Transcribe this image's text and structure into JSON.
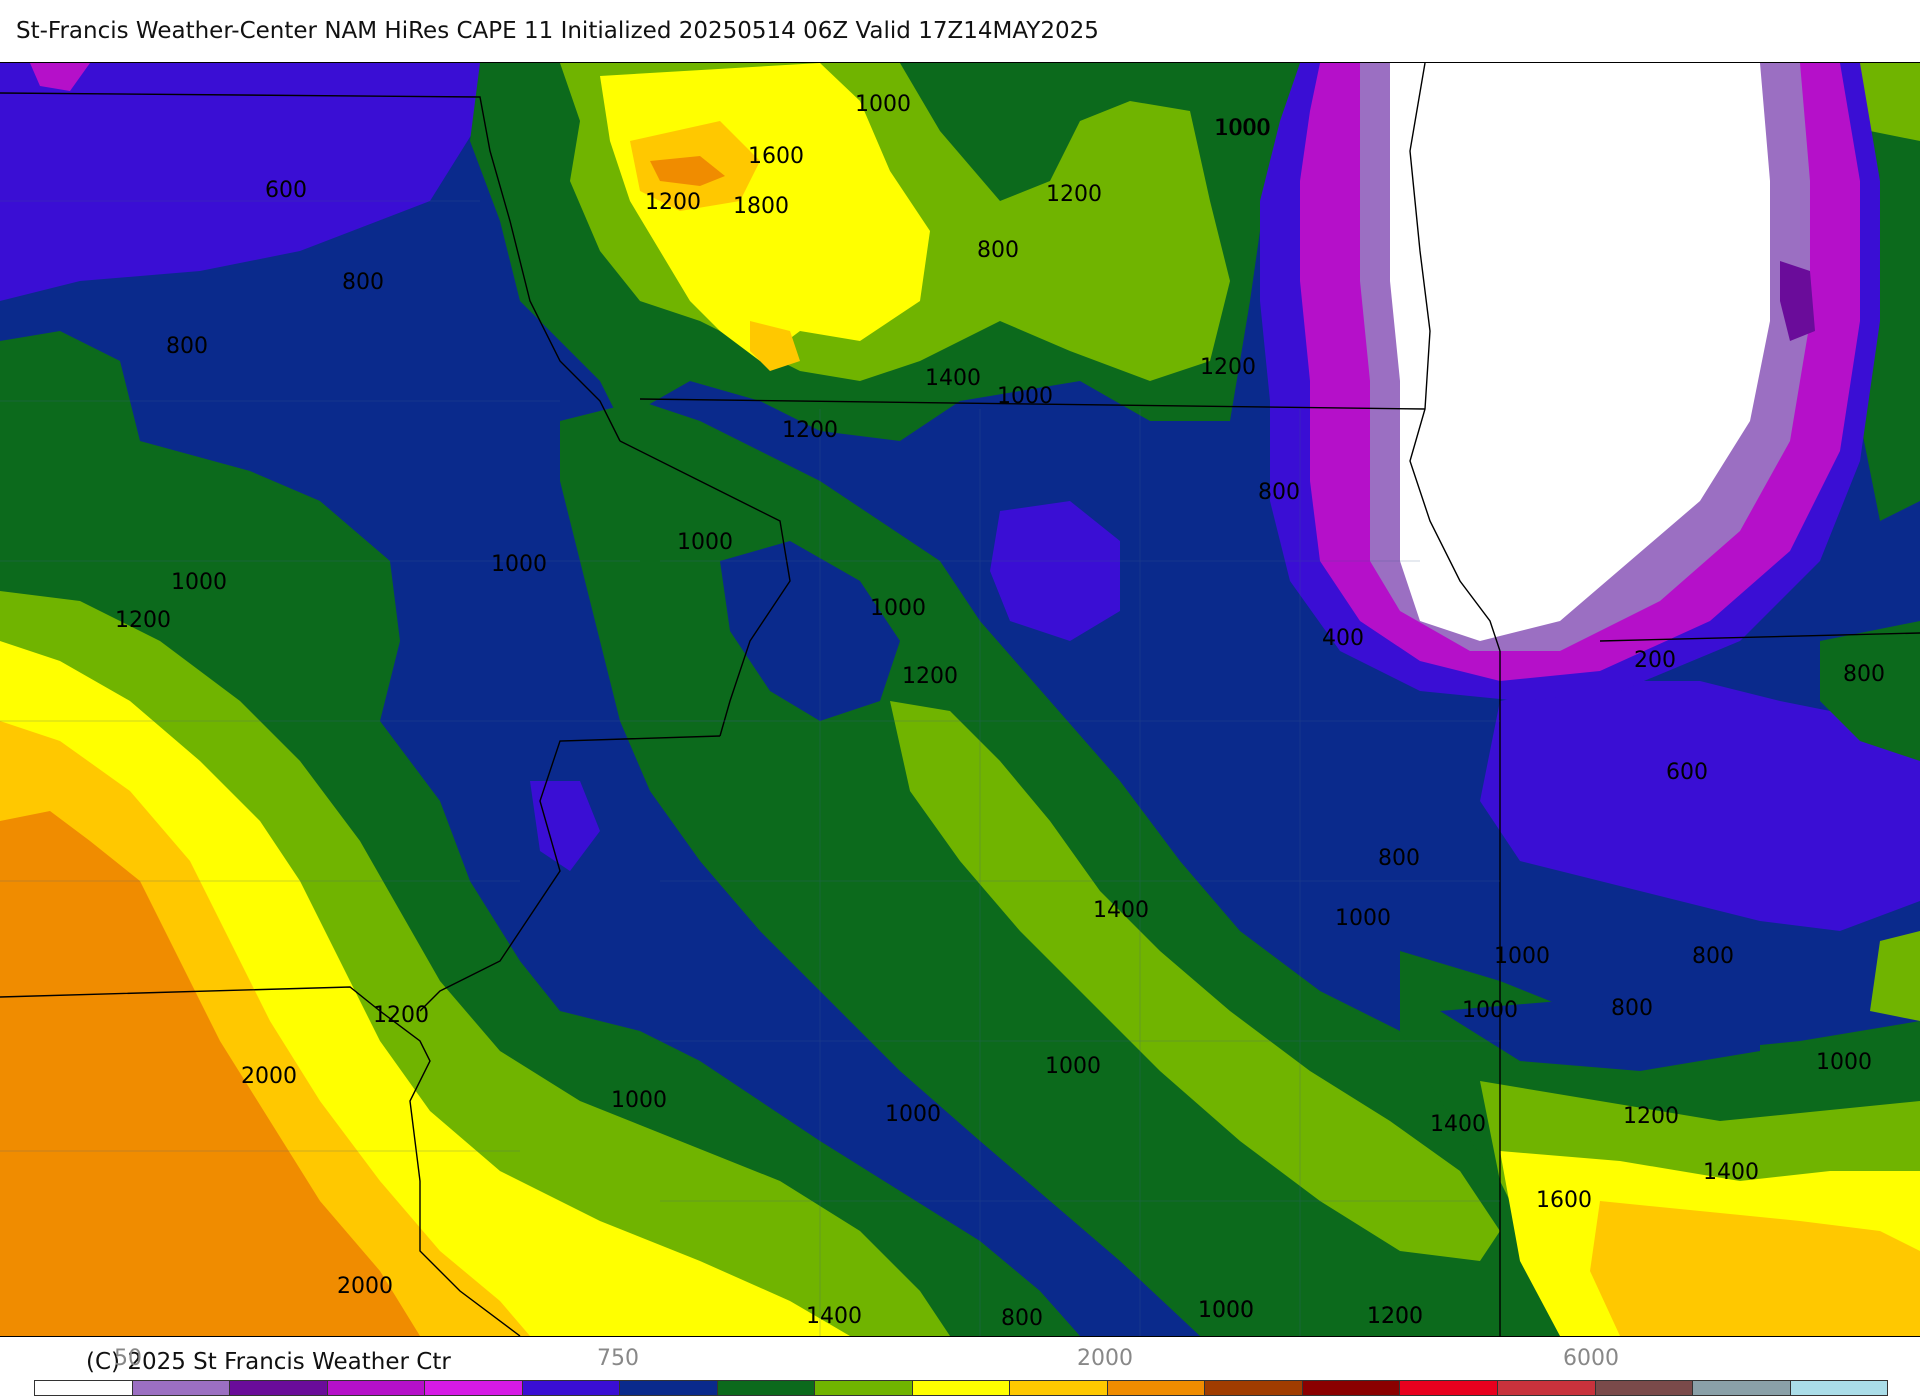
{
  "title": "St-Francis Weather-Center NAM HiRes CAPE  11 Initialized 20250514 06Z Valid 17Z14MAY2025",
  "copyright": "(C) 2025 St Francis Weather Ctr",
  "colorbar": {
    "tick_labels": [
      "50",
      "750",
      "2000",
      "6000"
    ],
    "colors": [
      "#ffffff",
      "#9b6fc2",
      "#6a0c9a",
      "#b510c9",
      "#d61ae6",
      "#3a0ed4",
      "#0a2a8c",
      "#0c6a1c",
      "#70b400",
      "#ffff00",
      "#ffc800",
      "#f08c00",
      "#a03c00",
      "#8b0000",
      "#e8001e",
      "#c8323c",
      "#7a4a4a",
      "#8aa0a8",
      "#aadde8"
    ]
  },
  "map": {
    "background_color": "#0a2a8c",
    "contour_labels": [
      "600",
      "800",
      "800",
      "1000",
      "1200",
      "1200",
      "1600",
      "1800",
      "1000",
      "1000",
      "1200",
      "800",
      "1400",
      "1000",
      "1200",
      "1200",
      "1000",
      "1000",
      "800",
      "1000",
      "1000",
      "1200",
      "1200",
      "400",
      "200",
      "800",
      "600",
      "800",
      "1400",
      "1000",
      "1000",
      "800",
      "1000",
      "800",
      "1000",
      "1000",
      "1200",
      "2000",
      "1000",
      "1000",
      "1000",
      "1400",
      "1200",
      "1400",
      "1600",
      "2000",
      "1400",
      "800",
      "1000",
      "1200"
    ]
  }
}
